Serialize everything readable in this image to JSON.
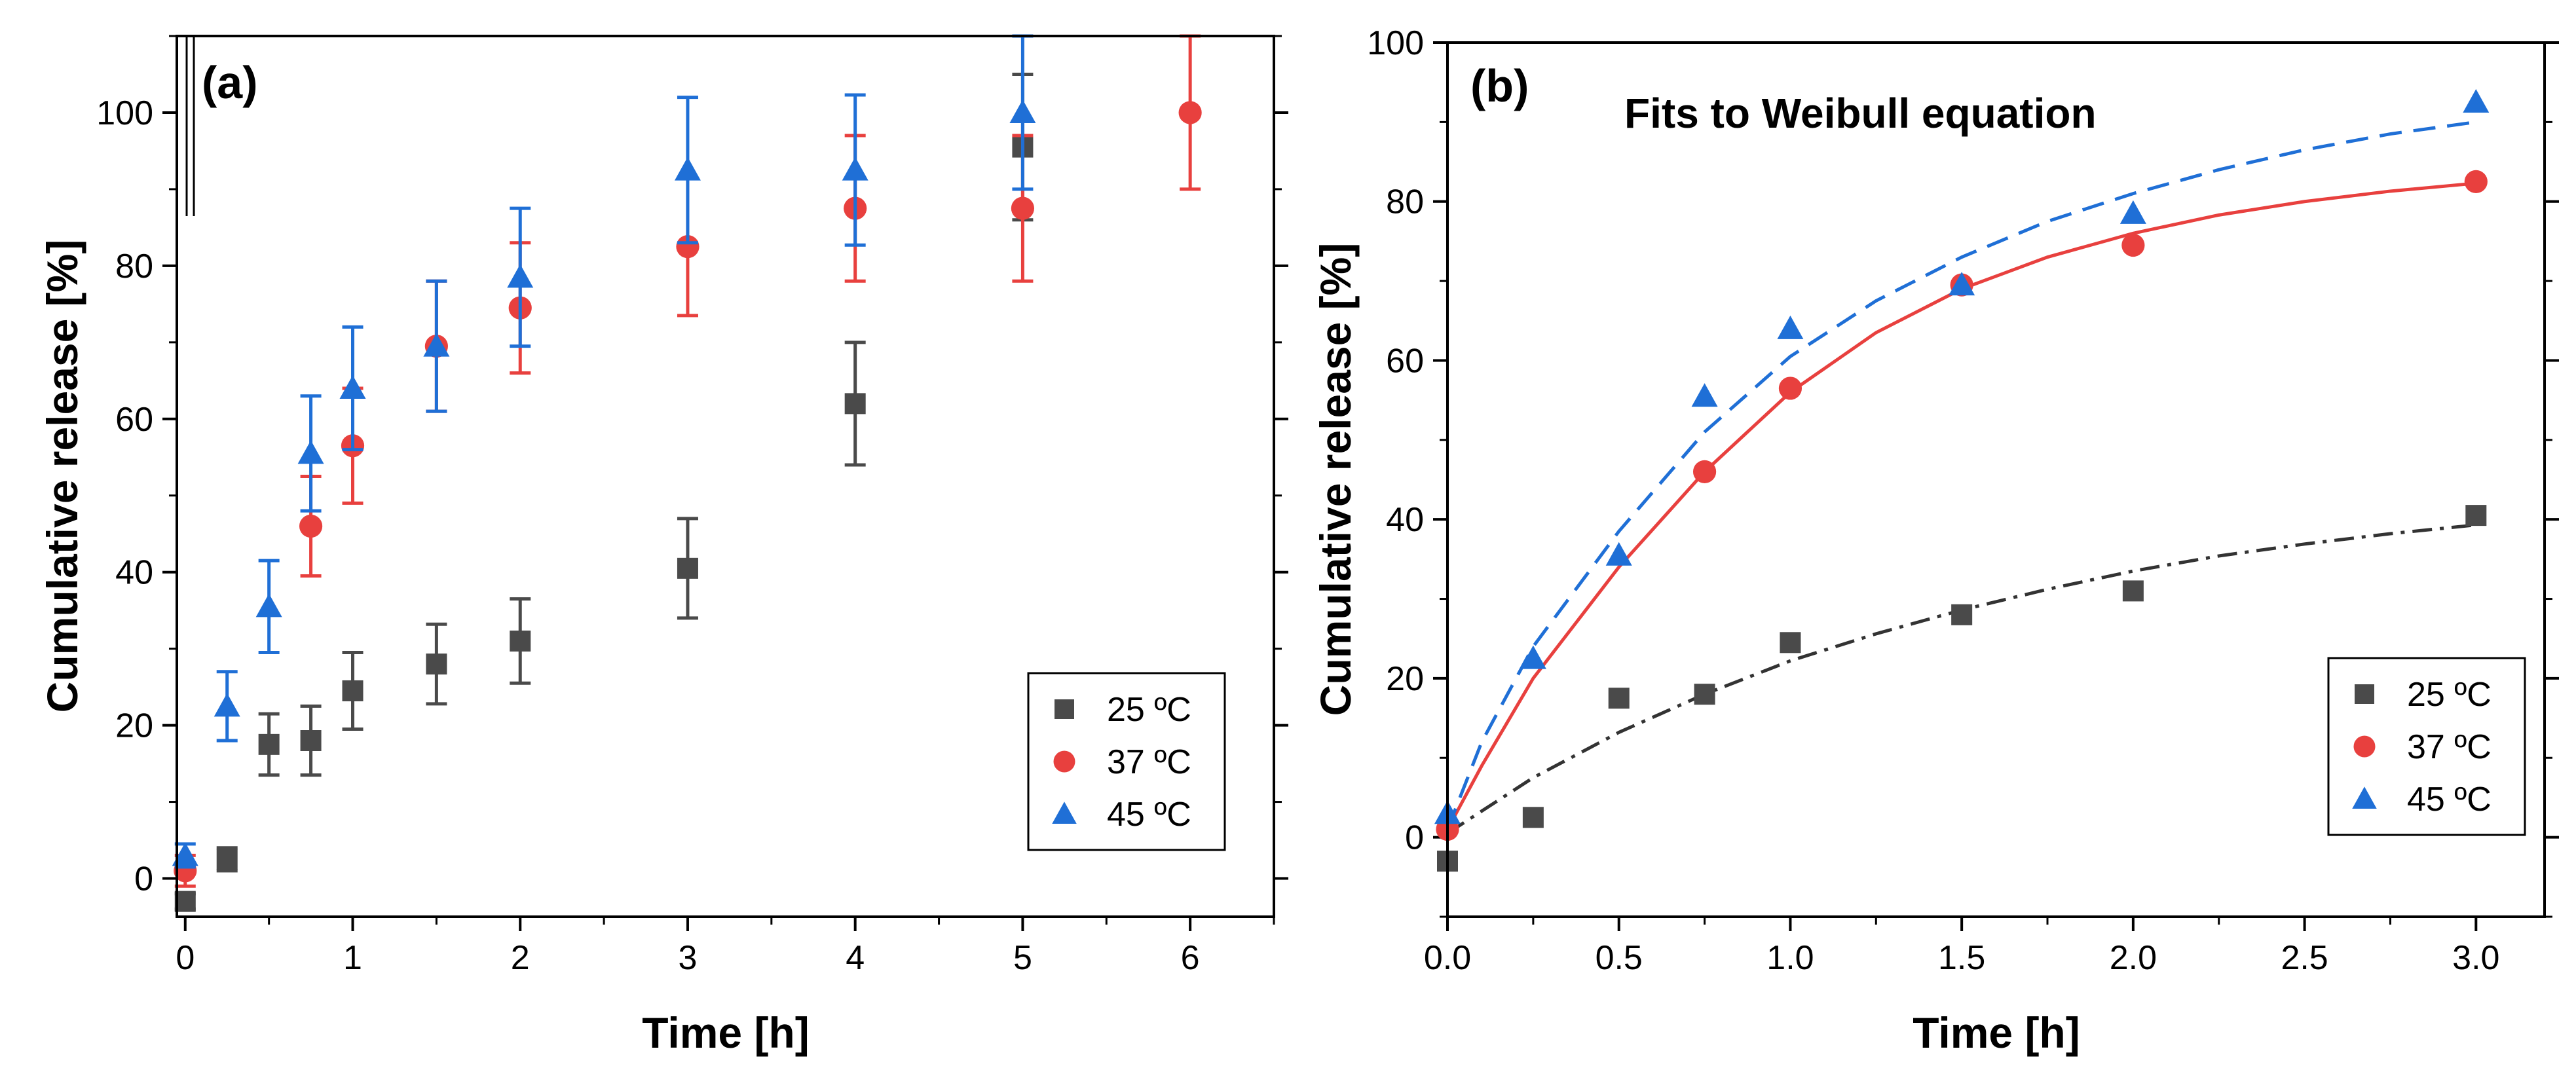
{
  "chart_data": [
    {
      "type": "scatter",
      "panel_label": "(a)",
      "title": "",
      "xlabel": "Time [h]",
      "ylabel": "Cumulative release [%]",
      "xlim": [
        -0.05,
        6.5
      ],
      "ylim": [
        -5,
        110
      ],
      "x_ticks": [
        0,
        1,
        2,
        3,
        4,
        5,
        6
      ],
      "x_tick_labels": [
        "0",
        "1",
        "2",
        "3",
        "4",
        "5",
        "6"
      ],
      "y_ticks": [
        0,
        20,
        40,
        60,
        80,
        100
      ],
      "y_tick_labels": [
        "0",
        "20",
        "40",
        "60",
        "80",
        "100"
      ],
      "error_bars": true,
      "legend_position": "bottom-right",
      "series": [
        {
          "name": "25 °C",
          "legend_label": "25 ºC",
          "marker": "square",
          "color": "#4a4a4a",
          "x": [
            0,
            0.25,
            0.5,
            0.75,
            1,
            1.5,
            2,
            3,
            4,
            5
          ],
          "y": [
            -3,
            2.5,
            17.5,
            18,
            24.5,
            28,
            31,
            40.5,
            62,
            95.5
          ],
          "err": [
            1,
            1.5,
            4,
            4.5,
            5,
            5.2,
            5.5,
            6.5,
            8,
            9.5
          ]
        },
        {
          "name": "37 °C",
          "legend_label": "37 ºC",
          "marker": "circle",
          "color": "#e8403e",
          "x": [
            0,
            0.75,
            1,
            1.5,
            2,
            3,
            4,
            5,
            6
          ],
          "y": [
            1,
            46,
            56.5,
            69.5,
            74.5,
            82.5,
            87.5,
            87.5,
            100
          ],
          "err": [
            2,
            6.5,
            7.5,
            8.5,
            8.5,
            9,
            9.5,
            9.5,
            10
          ]
        },
        {
          "name": "45 °C",
          "legend_label": "45 ºC",
          "marker": "triangle",
          "color": "#1f6fd6",
          "x": [
            0,
            0.25,
            0.5,
            0.75,
            1,
            1.5,
            2,
            3,
            4,
            5
          ],
          "y": [
            3,
            22.5,
            35.5,
            55.5,
            64,
            69.5,
            78.5,
            92.5,
            92.5,
            100
          ],
          "err": [
            1.5,
            4.5,
            6,
            7.5,
            8,
            8.5,
            9,
            9.5,
            9.8,
            10
          ]
        }
      ]
    },
    {
      "type": "scatter",
      "panel_label": "(b)",
      "title": "Fits to Weibull equation",
      "xlabel": "Time [h]",
      "ylabel": "Cumulative release [%]",
      "xlim": [
        0,
        3.2
      ],
      "ylim": [
        -10,
        100
      ],
      "x_ticks": [
        0,
        0.5,
        1,
        1.5,
        2,
        2.5,
        3
      ],
      "x_tick_labels": [
        "0.0",
        "0.5",
        "1.0",
        "1.5",
        "2.0",
        "2.5",
        "3.0"
      ],
      "y_ticks": [
        0,
        20,
        40,
        60,
        80,
        100
      ],
      "y_tick_labels": [
        "0",
        "20",
        "40",
        "60",
        "80",
        "100"
      ],
      "legend_position": "bottom-right",
      "series": [
        {
          "name": "25 °C",
          "legend_label": "25 ºC",
          "marker": "square",
          "color": "#4a4a4a",
          "x": [
            0,
            0.25,
            0.5,
            0.75,
            1,
            1.5,
            2,
            3
          ],
          "y": [
            -3,
            2.5,
            17.5,
            18,
            24.5,
            28,
            31,
            40.5
          ]
        },
        {
          "name": "37 °C",
          "legend_label": "37 ºC",
          "marker": "circle",
          "color": "#e8403e",
          "x": [
            0,
            0.75,
            1,
            1.5,
            2,
            3
          ],
          "y": [
            1,
            46,
            56.5,
            69.5,
            74.5,
            82.5
          ]
        },
        {
          "name": "45 °C",
          "legend_label": "45 ºC",
          "marker": "triangle",
          "color": "#1f6fd6",
          "x": [
            0,
            0.25,
            0.5,
            0.75,
            1,
            1.5,
            2,
            3
          ],
          "y": [
            3,
            22.5,
            35.5,
            55.5,
            64,
            69.5,
            78.5,
            92.5
          ]
        }
      ],
      "fits": [
        {
          "name": "Weibull fit 25 °C",
          "color": "#333333",
          "style": "dash-dot",
          "x": [
            0,
            0.25,
            0.5,
            0.75,
            1,
            1.25,
            1.5,
            1.75,
            2,
            2.25,
            2.5,
            2.75,
            3
          ],
          "y": [
            0.5,
            7.5,
            13.2,
            18,
            22.2,
            25.6,
            28.6,
            31.2,
            33.5,
            35.4,
            36.9,
            38.2,
            39.3
          ]
        },
        {
          "name": "Weibull fit 37 °C",
          "color": "#e8403e",
          "style": "solid",
          "x": [
            0,
            0.1,
            0.25,
            0.5,
            0.75,
            1,
            1.25,
            1.5,
            1.75,
            2,
            2.25,
            2.5,
            2.75,
            3
          ],
          "y": [
            1,
            9,
            20,
            34,
            46,
            56,
            63.5,
            69,
            73,
            76,
            78.3,
            80,
            81.3,
            82.3
          ]
        },
        {
          "name": "Weibull fit 45 °C",
          "color": "#1f6fd6",
          "style": "dashed",
          "x": [
            0,
            0.1,
            0.25,
            0.5,
            0.75,
            1,
            1.25,
            1.5,
            1.75,
            2,
            2.25,
            2.5,
            2.75,
            3
          ],
          "y": [
            1,
            12,
            24,
            38.5,
            51,
            60.5,
            67.5,
            73,
            77.5,
            81,
            84,
            86.5,
            88.5,
            90
          ]
        }
      ]
    }
  ]
}
